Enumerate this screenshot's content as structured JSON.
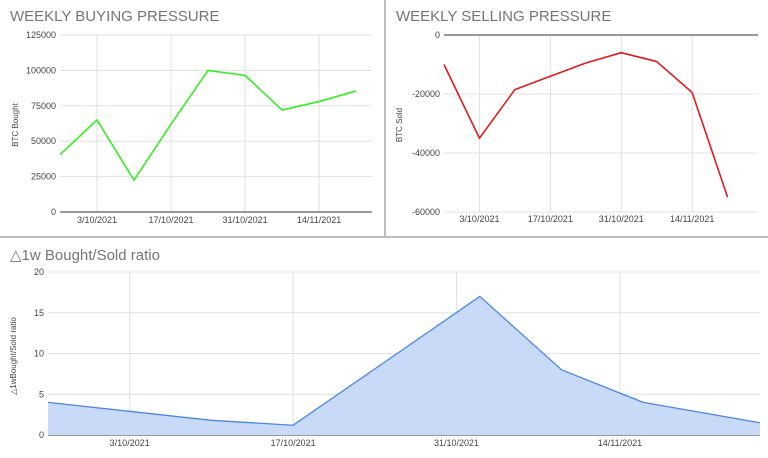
{
  "chart_data": [
    {
      "type": "line",
      "title": "WEEKLY BUYING PRESSURE",
      "xlabel": "",
      "ylabel": "BTC Bought",
      "x_ticks": [
        "3/10/2021",
        "17/10/2021",
        "31/10/2021",
        "14/11/2021"
      ],
      "y_ticks": [
        "0",
        "25000",
        "50000",
        "75000",
        "100000",
        "125000"
      ],
      "ylim": [
        0,
        125000
      ],
      "grid": true,
      "series": [
        {
          "color": "#33ee22",
          "points": [
            {
              "x": "2021-09-26",
              "y": 40500
            },
            {
              "x": "2021-10-03",
              "y": 65000
            },
            {
              "x": "2021-10-10",
              "y": 22500
            },
            {
              "x": "2021-10-17",
              "y": 62000
            },
            {
              "x": "2021-10-24",
              "y": 100000
            },
            {
              "x": "2021-10-31",
              "y": 96500
            },
            {
              "x": "2021-11-07",
              "y": 72000
            },
            {
              "x": "2021-11-14",
              "y": 78000
            },
            {
              "x": "2021-11-21",
              "y": 85500
            }
          ]
        }
      ]
    },
    {
      "type": "line",
      "title": "WEEKLY SELLING PRESSURE",
      "xlabel": "",
      "ylabel": "BTC Sold",
      "x_ticks": [
        "3/10/2021",
        "17/10/2021",
        "31/10/2021",
        "14/11/2021"
      ],
      "y_ticks": [
        "-60000",
        "-40000",
        "-20000",
        "0"
      ],
      "ylim": [
        -60000,
        0
      ],
      "grid": true,
      "series": [
        {
          "color": "#e01b1b",
          "points": [
            {
              "x": "2021-09-26",
              "y": -10000
            },
            {
              "x": "2021-10-03",
              "y": -35000
            },
            {
              "x": "2021-10-10",
              "y": -18500
            },
            {
              "x": "2021-10-17",
              "y": -14000
            },
            {
              "x": "2021-10-24",
              "y": -9500
            },
            {
              "x": "2021-10-31",
              "y": -6000
            },
            {
              "x": "2021-11-07",
              "y": -9000
            },
            {
              "x": "2021-11-14",
              "y": -19500
            },
            {
              "x": "2021-11-21",
              "y": -55000
            }
          ]
        }
      ]
    },
    {
      "type": "area",
      "title": "△1w Bought/Sold ratio",
      "xlabel": "",
      "ylabel": "△1wBought/Sold ratio",
      "x_ticks": [
        "3/10/2021",
        "17/10/2021",
        "31/10/2021",
        "14/11/2021"
      ],
      "y_ticks": [
        "0",
        "5",
        "10",
        "15",
        "20"
      ],
      "ylim": [
        0,
        20
      ],
      "grid": true,
      "series": [
        {
          "color": "#4a86e8",
          "fill": "#c9daf8",
          "points": [
            {
              "x": "2021-09-26",
              "y": 4.0
            },
            {
              "x": "2021-10-10",
              "y": 1.8
            },
            {
              "x": "2021-10-17",
              "y": 1.2
            },
            {
              "x": "2021-11-02",
              "y": 17.0
            },
            {
              "x": "2021-11-09",
              "y": 8.0
            },
            {
              "x": "2021-11-16",
              "y": 4.0
            },
            {
              "x": "2021-11-26",
              "y": 1.5
            }
          ]
        }
      ]
    }
  ]
}
